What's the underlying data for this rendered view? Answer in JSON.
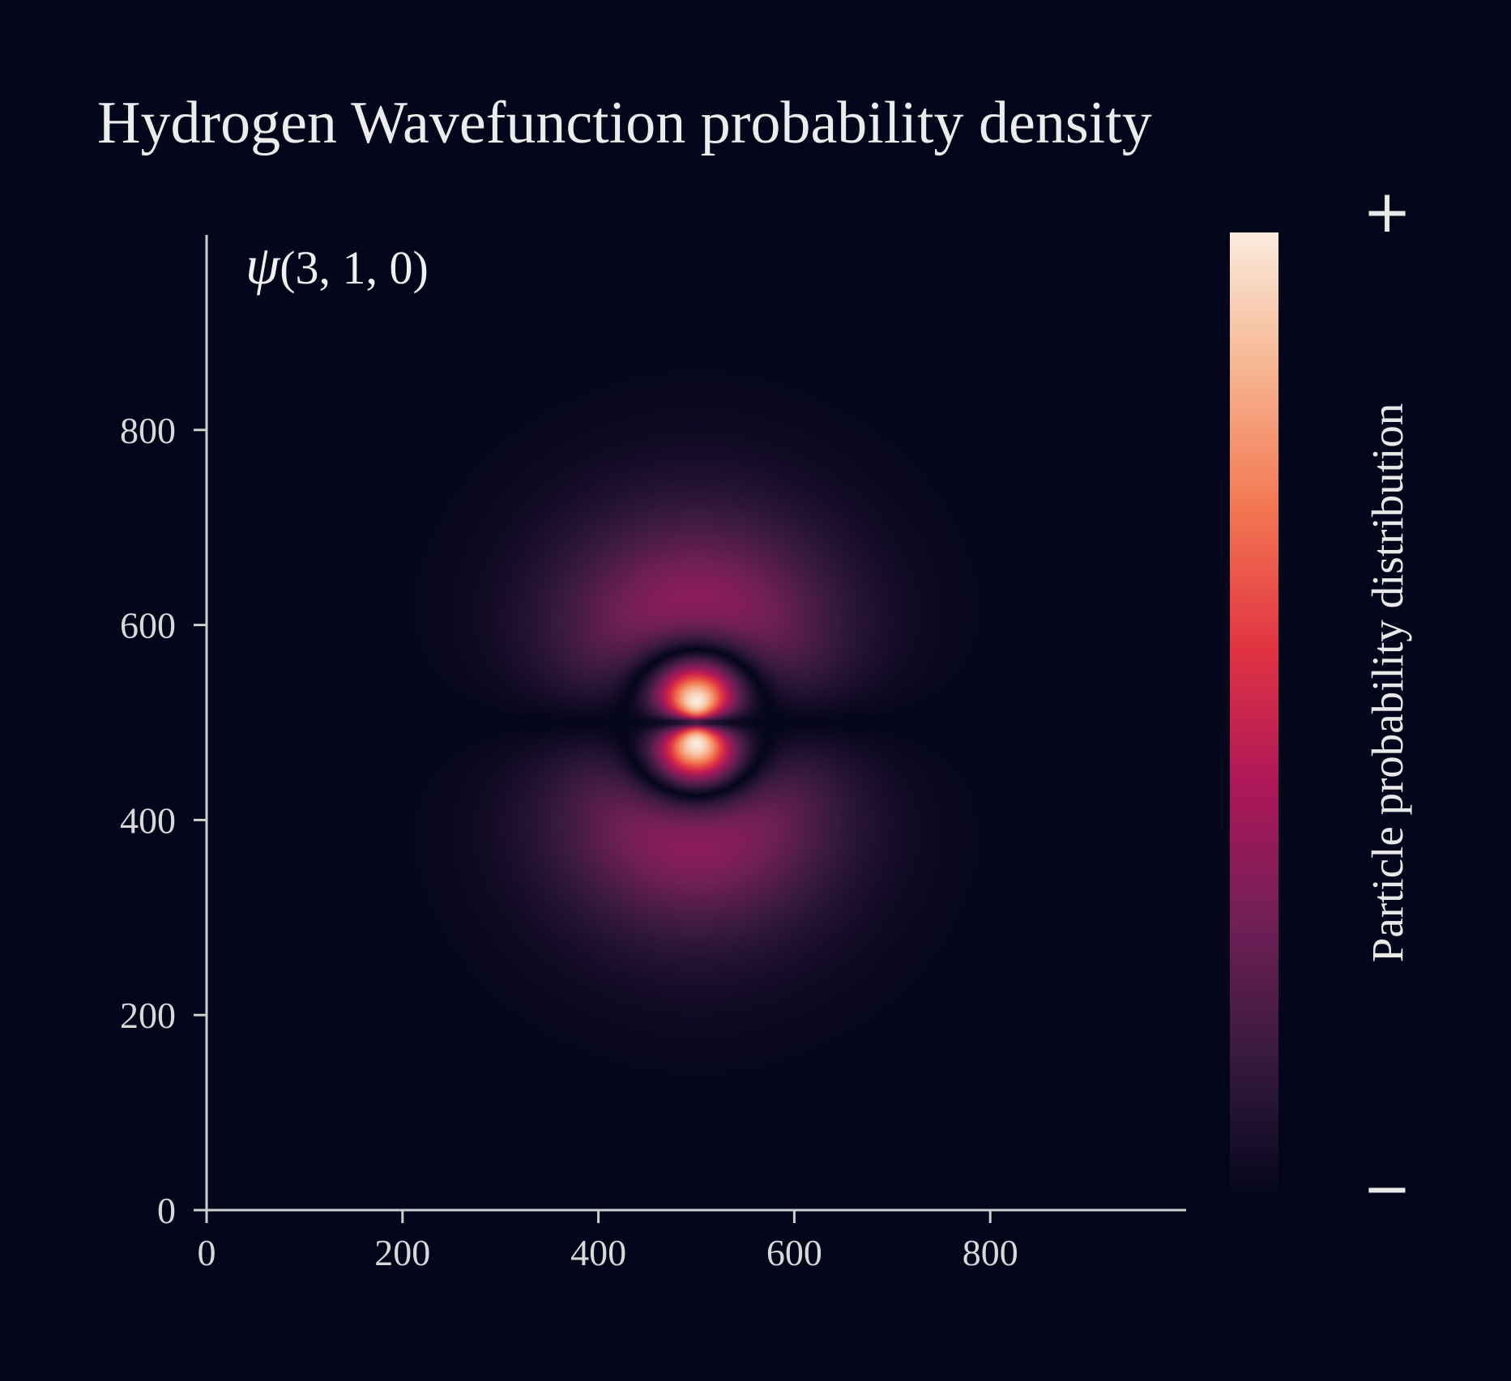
{
  "chart_data": {
    "type": "heatmap",
    "title": "Hydrogen Wavefunction probability density",
    "annotation": {
      "symbol": "ψ",
      "quantum_numbers": "(3, 1, 0)"
    },
    "quantum_numbers": {
      "n": 3,
      "l": 1,
      "m": 0
    },
    "xlim": [
      0,
      1000
    ],
    "ylim": [
      0,
      1000
    ],
    "x_ticks": [
      0,
      200,
      400,
      600,
      800
    ],
    "y_ticks": [
      0,
      200,
      400,
      600,
      800
    ],
    "x_tick_labels": [
      "0",
      "200",
      "400",
      "600",
      "800"
    ],
    "y_tick_labels": [
      "0",
      "200",
      "400",
      "600",
      "800"
    ],
    "center": [
      500,
      500
    ],
    "lobe_peaks": [
      {
        "x": 500,
        "y": 575,
        "value": 1.0
      },
      {
        "x": 500,
        "y": 425,
        "value": 1.0
      }
    ],
    "nodal_plane_y": 500,
    "grid": false,
    "colormap": "rocket",
    "colormap_stops": [
      "#03051a",
      "#35193e",
      "#701f57",
      "#ad1759",
      "#e13342",
      "#f37651",
      "#f6b48f",
      "#faebdd"
    ],
    "colorbar": {
      "label": "Particle probability distribution",
      "max_label": "+",
      "min_label": "−",
      "position": "right"
    }
  },
  "colors": {
    "background": "#03061a",
    "axis": "#cfcfcf",
    "text": "#e6e6e6"
  }
}
